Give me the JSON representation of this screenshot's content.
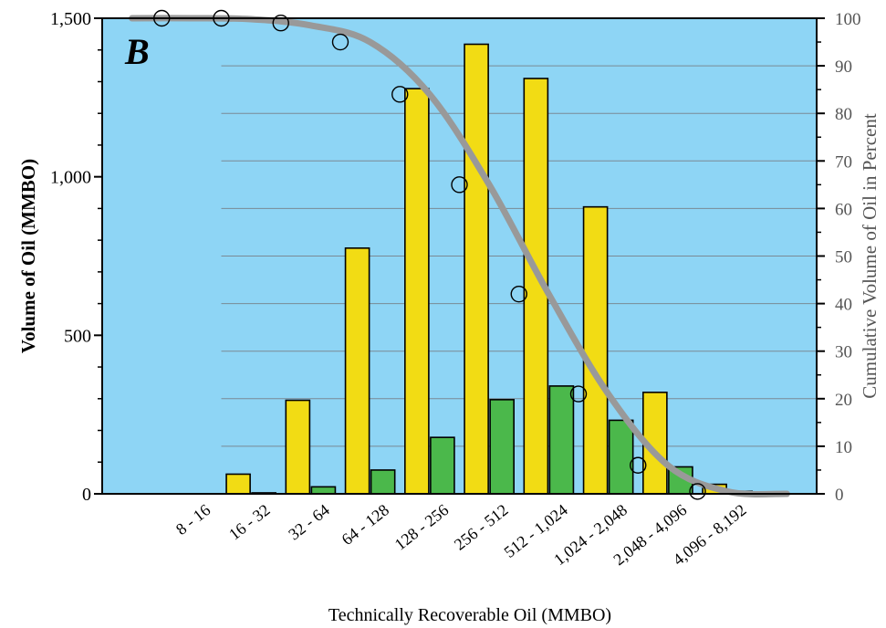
{
  "chart_data": {
    "type": "bar",
    "panel_label": "B",
    "xlabel": "Technically Recoverable Oil (MMBO)",
    "ylabel": "Volume of Oil (MMBO)",
    "y2label": "Cumulative Volume of Oil in Percent",
    "categories": [
      "",
      "8 - 16",
      "16 - 32",
      "32 - 64",
      "64 - 128",
      "128 - 256",
      "256 - 512",
      "512 - 1,024",
      "1,024 - 2,048",
      "2,048 - 4,096",
      "4,096 - 8,192",
      ""
    ],
    "ylim": [
      0,
      1500
    ],
    "y_ticks": [
      0,
      500,
      1000,
      1500
    ],
    "y_tick_labels": [
      "0",
      "500",
      "1,000",
      "1,500"
    ],
    "y2lim": [
      0,
      100
    ],
    "y2_ticks": [
      0,
      10,
      20,
      30,
      40,
      50,
      60,
      70,
      80,
      90,
      100
    ],
    "y2_tick_labels": [
      "0",
      "10",
      "20",
      "30",
      "40",
      "50",
      "60",
      "70",
      "80",
      "90",
      "100"
    ],
    "grid": true,
    "series": [
      {
        "color": "#f2dc14",
        "values": [
          0,
          0,
          62,
          295,
          775,
          1278,
          1418,
          1310,
          905,
          320,
          30,
          0
        ]
      },
      {
        "color": "#4bb84b",
        "values": [
          0,
          0,
          3,
          22,
          75,
          178,
          297,
          340,
          232,
          85,
          8,
          0
        ]
      }
    ],
    "cumulative": {
      "type": "line",
      "axis": "right",
      "color": "#999999",
      "values": [
        100,
        100,
        99.8,
        98.5,
        95,
        84,
        65,
        42,
        21,
        6,
        0.5,
        0
      ],
      "points": [
        {
          "category_index": 0.5,
          "value": 100
        },
        {
          "category_index": 1.5,
          "value": 100
        },
        {
          "category_index": 2.5,
          "value": 99
        },
        {
          "category_index": 3.5,
          "value": 95
        },
        {
          "category_index": 4.5,
          "value": 84
        },
        {
          "category_index": 5.5,
          "value": 65
        },
        {
          "category_index": 6.5,
          "value": 42
        },
        {
          "category_index": 7.5,
          "value": 21
        },
        {
          "category_index": 8.5,
          "value": 6
        },
        {
          "category_index": 9.5,
          "value": 0.5
        }
      ]
    },
    "colors": {
      "plot_background": "#8ed5f5",
      "grid": "#7a8a95",
      "right_axis_text": "#555555"
    }
  }
}
